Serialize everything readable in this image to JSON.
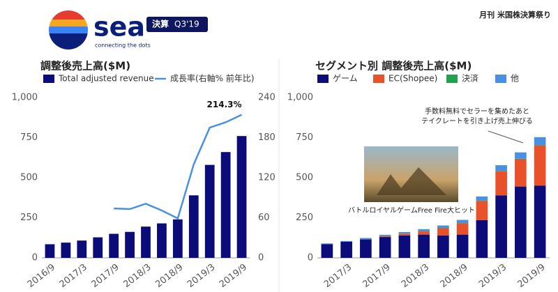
{
  "header": {
    "logo": "sea",
    "tagline": "connecting the dots",
    "badge_label": "決算",
    "badge_period": "Q3'19",
    "corner": "月刊 米国株決算祭り"
  },
  "chart_data": [
    {
      "type": "bar",
      "title": "調整後売上高($M)",
      "categories": [
        "2016/9",
        null,
        "2017/3",
        null,
        "2017/9",
        null,
        "2018/3",
        null,
        "2018/9",
        null,
        "2019/3",
        null,
        "2019/9"
      ],
      "series": [
        {
          "name": "Total adjusted revenue",
          "type": "bar",
          "color": "#0b0b7a",
          "values": [
            85,
            95,
            108,
            128,
            150,
            162,
            195,
            215,
            240,
            390,
            580,
            660,
            760
          ]
        },
        {
          "name": "成長率(右軸% 前年比)",
          "type": "line",
          "axis": "y2",
          "color": "#4a90e2",
          "values": [
            null,
            null,
            null,
            null,
            74,
            73,
            81,
            71,
            59,
            140,
            195,
            203,
            214.3
          ],
          "value_labels": [
            null,
            null,
            null,
            null,
            null,
            null,
            null,
            null,
            null,
            null,
            null,
            null,
            "214.3%"
          ]
        }
      ],
      "ylim": [
        0,
        1000
      ],
      "yticks": [
        0,
        250,
        500,
        750,
        {
          "value": 1000,
          "label": "1,000"
        }
      ],
      "y2lim": [
        0,
        240
      ],
      "y2ticks": [
        0,
        60,
        120,
        180,
        240
      ],
      "grid": false
    },
    {
      "type": "bar",
      "stacked": true,
      "title": "セグメント別 調整後売上高($M)",
      "categories": [
        null,
        "2017/3",
        null,
        "2017/9",
        null,
        "2018/3",
        null,
        "2018/9",
        null,
        "2019/3",
        null,
        "2019/9"
      ],
      "series": [
        {
          "name": "ゲーム",
          "color": "#0b0b7a",
          "values": [
            85,
            100,
            115,
            130,
            140,
            145,
            140,
            145,
            235,
            390,
            445,
            450
          ]
        },
        {
          "name": "EC(Shopee)",
          "color": "#e8512a",
          "values": [
            0,
            0,
            0,
            5,
            10,
            20,
            45,
            70,
            120,
            150,
            170,
            250
          ]
        },
        {
          "name": "決済",
          "color": "#22a050",
          "values": [
            0,
            0,
            1,
            1,
            1,
            2,
            2,
            2,
            3,
            3,
            3,
            3
          ]
        },
        {
          "name": "他",
          "color": "#4a90e2",
          "values": [
            5,
            5,
            8,
            8,
            10,
            12,
            15,
            20,
            25,
            35,
            40,
            50
          ]
        }
      ],
      "ylim": [
        0,
        1000
      ],
      "yticks": [
        0,
        250,
        500,
        750,
        {
          "value": 1000,
          "label": "1,000"
        }
      ],
      "grid": false,
      "annotations": [
        {
          "lines": [
            "手数料無料でセラーを集めたあと",
            "テイクレートを引き上げ売上伸びる"
          ]
        },
        {
          "lines": [
            "バトルロイヤルゲームFree Fire大ヒット"
          ]
        }
      ]
    }
  ]
}
